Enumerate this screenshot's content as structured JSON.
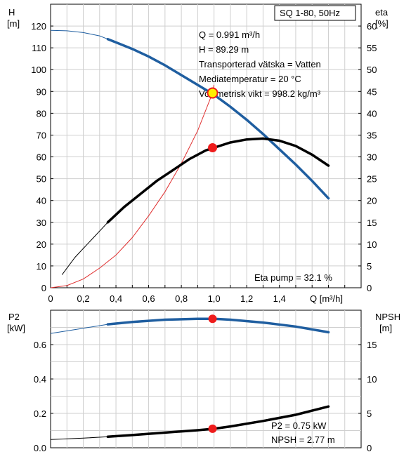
{
  "chart_data": {
    "type": "line",
    "pump_label": "SQ 1-80, 50Hz",
    "colors": {
      "head": "#1f5ea0",
      "efficiency": "#000000",
      "system": "#e03030",
      "marker": "#ee1c1c",
      "op_point": "#ffee00",
      "grid": "#cfcfcf"
    },
    "top": {
      "h_axis_label": "H",
      "h_unit": "[m]",
      "eta_axis_label": "eta",
      "eta_unit": "[%]",
      "x_axis_label": "Q [m³/h]",
      "xlim": [
        0,
        1.9
      ],
      "hlim": [
        0,
        130
      ],
      "etalim": [
        0,
        65
      ],
      "x_ticks": [
        "0",
        "0,2",
        "0,4",
        "0,6",
        "0,8",
        "1,0",
        "1,2",
        "1,4"
      ],
      "h_ticks": [
        "0",
        "10",
        "20",
        "30",
        "40",
        "50",
        "60",
        "70",
        "80",
        "90",
        "100",
        "110",
        "120"
      ],
      "eta_ticks": [
        "0",
        "5",
        "10",
        "15",
        "20",
        "25",
        "30",
        "35",
        "40",
        "45",
        "50",
        "55",
        "60"
      ],
      "info_lines": [
        "Q = 0.991 m³/h",
        "H = 89.29 m",
        "Transporterad vätska = Vatten",
        "Mediatemperatur = 20 °C",
        "Volymetrisk vikt = 998.2 kg/m³"
      ],
      "eta_pump_text": "Eta pump = 32.1 %",
      "head_curve": {
        "q": [
          0,
          0.1,
          0.2,
          0.3,
          0.35,
          0.4,
          0.5,
          0.6,
          0.7,
          0.8,
          0.9,
          1.0,
          1.1,
          1.2,
          1.3,
          1.4,
          1.5,
          1.6,
          1.7
        ],
        "h": [
          118,
          117.8,
          117,
          115.5,
          114,
          112.5,
          109.5,
          106,
          102,
          97.5,
          93,
          88.5,
          83,
          77,
          70.5,
          63.5,
          56.5,
          49,
          41
        ],
        "bold_from": 0.35
      },
      "efficiency_curve": {
        "q": [
          0.07,
          0.15,
          0.25,
          0.35,
          0.45,
          0.55,
          0.65,
          0.75,
          0.85,
          0.95,
          1.0,
          1.1,
          1.2,
          1.3,
          1.4,
          1.5,
          1.6,
          1.7
        ],
        "eta": [
          3,
          7,
          11,
          15,
          18.5,
          21.5,
          24.5,
          27,
          29.5,
          31.5,
          32.1,
          33.3,
          34,
          34.2,
          33.7,
          32.5,
          30.5,
          28
        ],
        "bold_from": 0.35
      },
      "system_curve": {
        "q": [
          0,
          0.1,
          0.2,
          0.3,
          0.4,
          0.5,
          0.6,
          0.7,
          0.8,
          0.9,
          0.991,
          1.0
        ],
        "h": [
          0,
          1,
          4,
          9,
          15,
          23,
          33,
          44,
          57,
          72,
          89.29,
          93
        ]
      },
      "operating_point": {
        "q": 0.991,
        "h": 89.29,
        "eta": 32.1
      }
    },
    "bottom": {
      "p2_axis_label": "P2",
      "p2_unit": "[kW]",
      "npsh_axis_label": "NPSH",
      "npsh_unit": "[m]",
      "xlim": [
        0,
        1.9
      ],
      "p2lim": [
        0,
        0.8
      ],
      "npshlim": [
        0,
        20
      ],
      "p2_ticks": [
        "0.0",
        "0.2",
        "0.4",
        "0.6"
      ],
      "npsh_ticks": [
        "0",
        "5",
        "10",
        "15"
      ],
      "p2_curve": {
        "q": [
          0,
          0.2,
          0.35,
          0.5,
          0.7,
          0.9,
          1.0,
          1.1,
          1.3,
          1.5,
          1.7
        ],
        "p2": [
          0.665,
          0.695,
          0.718,
          0.732,
          0.745,
          0.75,
          0.75,
          0.745,
          0.728,
          0.705,
          0.672
        ],
        "bold_from": 0.35
      },
      "npsh_curve": {
        "q": [
          0,
          0.2,
          0.35,
          0.5,
          0.7,
          0.9,
          1.0,
          1.1,
          1.3,
          1.5,
          1.7
        ],
        "npsh": [
          1.2,
          1.4,
          1.6,
          1.85,
          2.2,
          2.55,
          2.77,
          3.1,
          3.9,
          4.8,
          6.0
        ],
        "bold_from": 0.35
      },
      "operating_point": {
        "q": 0.991,
        "p2": 0.75,
        "npsh": 2.77
      },
      "info_lines": [
        "P2 = 0.75 kW",
        "NPSH = 2.77 m"
      ]
    }
  }
}
